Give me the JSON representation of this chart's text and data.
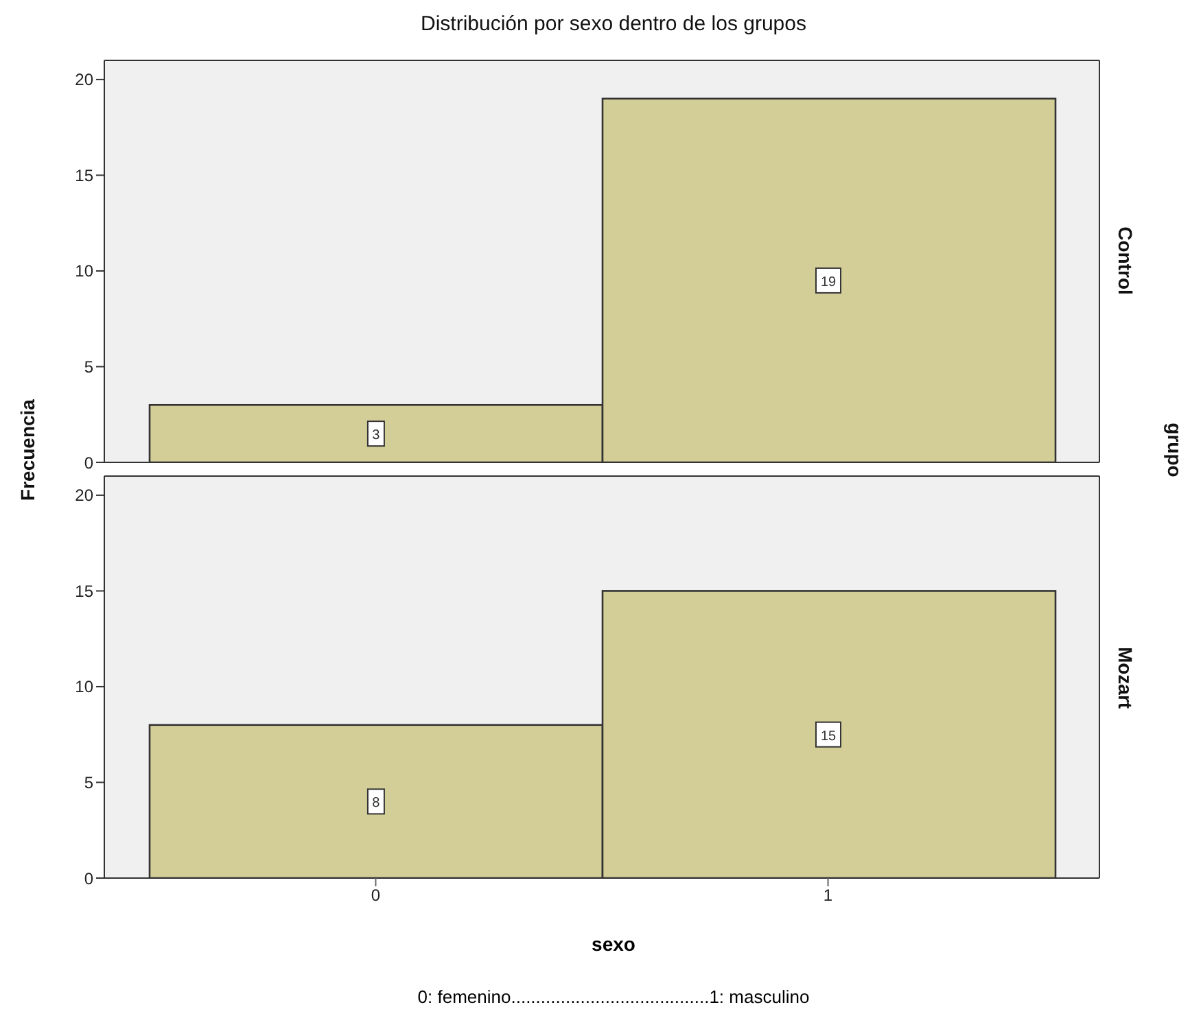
{
  "chart_data": [
    {
      "type": "histogram",
      "title": "Distribución por sexo dentro de los grupos",
      "ylabel": "Frecuencia",
      "y2label": "grupo",
      "annotations": [
        "Control"
      ],
      "bins": [
        -0.5,
        0.5,
        1.5
      ],
      "values": [
        3,
        19
      ],
      "color": "#d3cd98",
      "xlim": [
        -0.6,
        1.6
      ],
      "ylim": [
        0,
        21
      ],
      "yticks": [
        0,
        5,
        10,
        15,
        20
      ],
      "data_labels": true,
      "tick_labels": "y",
      "grid": false
    },
    {
      "type": "histogram",
      "xlabel": "sexo",
      "annotations": [
        "Mozart",
        "0: femenino........................................1: masculino"
      ],
      "bins": [
        -0.5,
        0.5,
        1.5
      ],
      "values": [
        8,
        15
      ],
      "color": "#d3cd98",
      "xlim": [
        -0.6,
        1.6
      ],
      "xticks": [
        0,
        1
      ],
      "ylim": [
        0,
        21
      ],
      "yticks": [
        0,
        5,
        10,
        15,
        20
      ],
      "data_labels": true,
      "grid": false
    }
  ]
}
